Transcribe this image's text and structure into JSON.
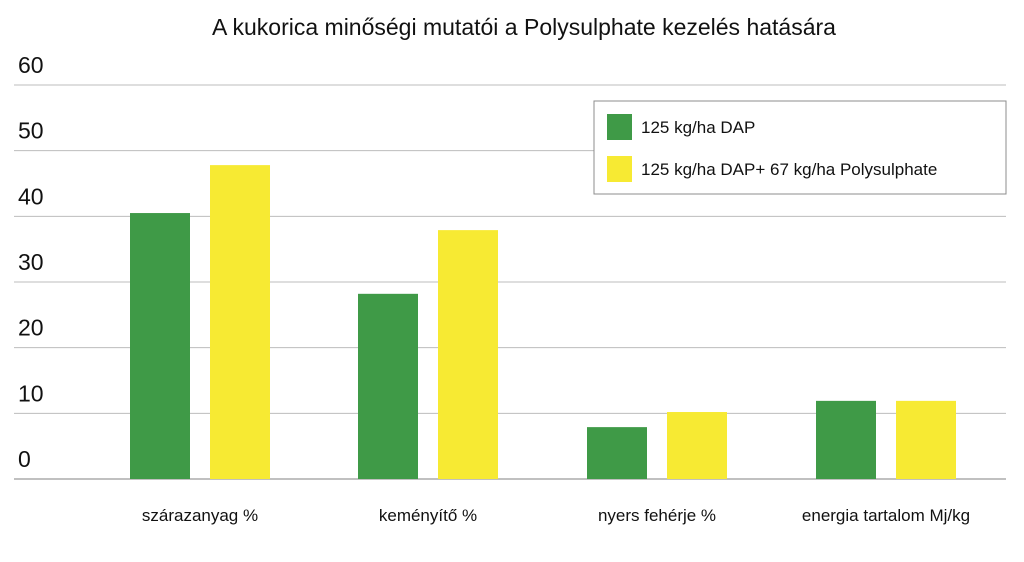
{
  "chart_data": {
    "type": "bar",
    "title": "A kukorica minőségi mutatói a Polysulphate kezelés hatására",
    "categories": [
      "szárazanyag %",
      "keményítő %",
      "nyers fehérje %",
      "energia tartalom Mj/kg"
    ],
    "series": [
      {
        "name": "125 kg/ha DAP",
        "color": "#3f9a47",
        "values": [
          40.5,
          28.2,
          7.9,
          11.9
        ]
      },
      {
        "name": "125 kg/ha DAP+ 67 kg/ha Polysulphate",
        "color": "#f7ea33",
        "values": [
          47.8,
          37.9,
          10.2,
          11.9
        ]
      }
    ],
    "ylim": [
      0,
      60
    ],
    "yticks": [
      0,
      10,
      20,
      30,
      40,
      50,
      60
    ],
    "grid": true,
    "legend_position": "top-right"
  }
}
